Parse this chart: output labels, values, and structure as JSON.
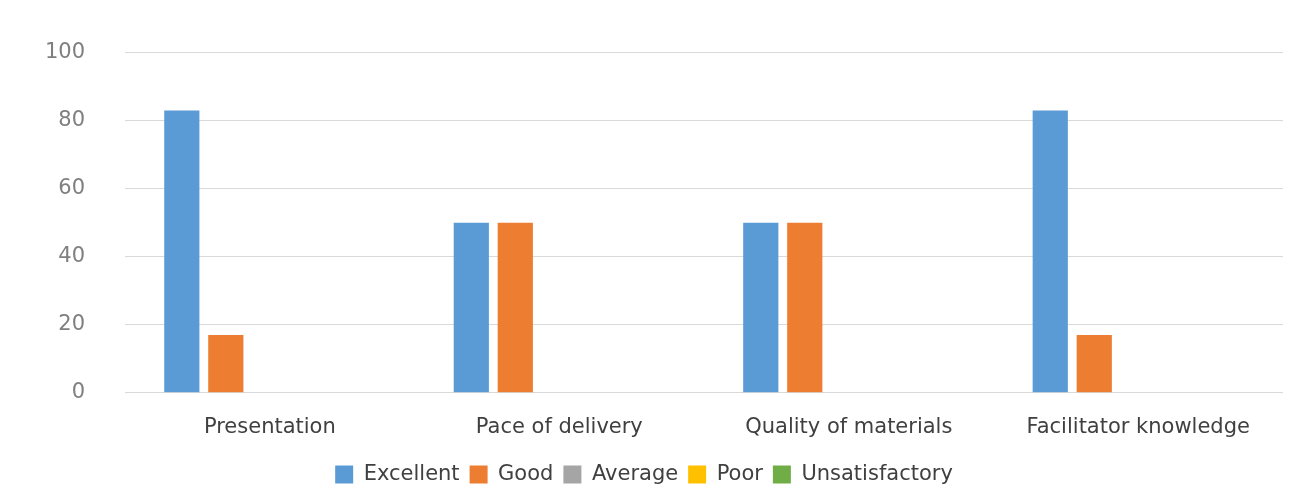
{
  "chart_data": {
    "type": "bar",
    "categories": [
      "Presentation",
      "Pace of delivery",
      "Quality of materials",
      "Facilitator knowledge"
    ],
    "series": [
      {
        "name": "Excellent",
        "color": "#5b9bd5",
        "values": [
          83,
          50,
          50,
          83
        ]
      },
      {
        "name": "Good",
        "color": "#ed7d31",
        "values": [
          17,
          50,
          50,
          17
        ]
      },
      {
        "name": "Average",
        "color": "#a5a5a5",
        "values": [
          0,
          0,
          0,
          0
        ]
      },
      {
        "name": "Poor",
        "color": "#ffc000",
        "values": [
          0,
          0,
          0,
          0
        ]
      },
      {
        "name": "Unsatisfactory",
        "color": "#70ad47",
        "values": [
          0,
          0,
          0,
          0
        ]
      }
    ],
    "ylim": [
      0,
      100
    ],
    "yticks": [
      0,
      20,
      40,
      60,
      80,
      100
    ],
    "grid": "y",
    "legend": "bottom"
  }
}
